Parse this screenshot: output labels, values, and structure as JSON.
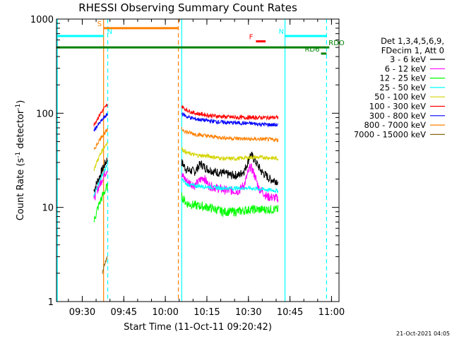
{
  "chart_data": {
    "type": "line",
    "title": "RHESSI Observing Summary Count Rates",
    "xlabel": "Start Time (11-Oct-11 09:20:42)",
    "ylabel_main": "Count Rate (s",
    "ylabel_sup1": "-1",
    "ylabel_mid": " detector",
    "ylabel_sup2": "-1",
    "ylabel_end": ")",
    "x_unit": "minutes after 09:20:42",
    "xlim": [
      0,
      102
    ],
    "ylim": [
      1,
      1000
    ],
    "yscale": "log",
    "x_ticks": [
      {
        "value": 9.3,
        "label": "09:30"
      },
      {
        "value": 24.3,
        "label": "09:45"
      },
      {
        "value": 39.3,
        "label": "10:00"
      },
      {
        "value": 54.3,
        "label": "10:15"
      },
      {
        "value": 69.3,
        "label": "10:30"
      },
      {
        "value": 84.3,
        "label": "10:45"
      },
      {
        "value": 99.3,
        "label": "11:00"
      }
    ],
    "y_ticks": [
      {
        "value": 1,
        "label": "1"
      },
      {
        "value": 10,
        "label": "10"
      },
      {
        "value": 100,
        "label": "100"
      },
      {
        "value": 1000,
        "label": "1000"
      }
    ],
    "legend_header": [
      "Det 1,3,4,5,6,9,",
      "FDecim 1, Att 0"
    ],
    "legend_position": "right",
    "series": [
      {
        "name": "3 - 6 keV",
        "color": "#000000",
        "seg1": [
          [
            13.5,
            15
          ],
          [
            14.5,
            18
          ],
          [
            15.5,
            21
          ],
          [
            16.5,
            25
          ],
          [
            17.5,
            29
          ],
          [
            18.5,
            33
          ]
        ],
        "seg2": [
          [
            45.2,
            30
          ],
          [
            47,
            25
          ],
          [
            50,
            24
          ],
          [
            52,
            29
          ],
          [
            54,
            26
          ],
          [
            57,
            24
          ],
          [
            60,
            23
          ],
          [
            63,
            22
          ],
          [
            66,
            22
          ],
          [
            68,
            25
          ],
          [
            69,
            30
          ],
          [
            70,
            36
          ],
          [
            71,
            34
          ],
          [
            72,
            30
          ],
          [
            74,
            24
          ],
          [
            77,
            20
          ],
          [
            80,
            19
          ]
        ]
      },
      {
        "name": "6 - 12 keV",
        "color": "#ff00ff",
        "seg1": [
          [
            13.5,
            12
          ],
          [
            14.5,
            15
          ],
          [
            15.5,
            17
          ],
          [
            16.5,
            20
          ],
          [
            17.5,
            23
          ],
          [
            18.5,
            26
          ]
        ],
        "seg2": [
          [
            45.2,
            22
          ],
          [
            47,
            19
          ],
          [
            50,
            17
          ],
          [
            53,
            21
          ],
          [
            55,
            17
          ],
          [
            58,
            16
          ],
          [
            62,
            15
          ],
          [
            66,
            15
          ],
          [
            68,
            18
          ],
          [
            70,
            27
          ],
          [
            71,
            24
          ],
          [
            73,
            16
          ],
          [
            76,
            13
          ],
          [
            80,
            12.5
          ]
        ]
      },
      {
        "name": "12 - 25 keV",
        "color": "#00ff00",
        "seg1": [
          [
            13.5,
            7
          ],
          [
            14.5,
            9
          ],
          [
            15.5,
            11
          ],
          [
            16.5,
            13
          ],
          [
            17.5,
            15
          ],
          [
            18.5,
            17
          ]
        ],
        "seg2": [
          [
            45.2,
            13
          ],
          [
            47,
            11
          ],
          [
            50,
            10.5
          ],
          [
            55,
            10
          ],
          [
            60,
            9
          ],
          [
            65,
            9
          ],
          [
            70,
            9.5
          ],
          [
            75,
            9.5
          ],
          [
            80,
            9.5
          ]
        ]
      },
      {
        "name": "25 - 50 keV",
        "color": "#00ffff",
        "seg1": [
          [
            13.5,
            13
          ],
          [
            14.5,
            16
          ],
          [
            15.5,
            19
          ],
          [
            16.5,
            22
          ],
          [
            17.5,
            25
          ],
          [
            18.5,
            28
          ]
        ],
        "seg2": [
          [
            45.2,
            20
          ],
          [
            47,
            17.5
          ],
          [
            50,
            17
          ],
          [
            55,
            16.5
          ],
          [
            60,
            16
          ],
          [
            65,
            16
          ],
          [
            70,
            16
          ],
          [
            75,
            15.5
          ],
          [
            80,
            15
          ]
        ]
      },
      {
        "name": "50 - 100 keV",
        "color": "#d4d400",
        "seg1": [
          [
            13.5,
            25
          ],
          [
            14.5,
            30
          ],
          [
            15.5,
            35
          ],
          [
            16.5,
            40
          ],
          [
            17.5,
            45
          ],
          [
            18.5,
            50
          ]
        ],
        "seg2": [
          [
            45.2,
            42
          ],
          [
            47,
            38
          ],
          [
            50,
            36
          ],
          [
            55,
            35
          ],
          [
            60,
            33
          ],
          [
            65,
            33
          ],
          [
            70,
            34
          ],
          [
            75,
            34
          ],
          [
            80,
            33
          ]
        ]
      },
      {
        "name": "100 - 300 keV",
        "color": "#ff0000",
        "seg1": [
          [
            13.5,
            75
          ],
          [
            14.5,
            85
          ],
          [
            15.5,
            95
          ],
          [
            16.5,
            105
          ],
          [
            17.5,
            115
          ],
          [
            18.5,
            125
          ]
        ],
        "seg2": [
          [
            45.2,
            118
          ],
          [
            47,
            108
          ],
          [
            50,
            100
          ],
          [
            55,
            95
          ],
          [
            60,
            92
          ],
          [
            65,
            90
          ],
          [
            70,
            90
          ],
          [
            75,
            90
          ],
          [
            80,
            90
          ]
        ]
      },
      {
        "name": "300 - 800 keV",
        "color": "#0000ff",
        "seg1": [
          [
            13.5,
            65
          ],
          [
            14.5,
            72
          ],
          [
            15.5,
            78
          ],
          [
            16.5,
            85
          ],
          [
            17.5,
            92
          ],
          [
            18.5,
            98
          ]
        ],
        "seg2": [
          [
            45.2,
            100
          ],
          [
            47,
            92
          ],
          [
            50,
            87
          ],
          [
            55,
            83
          ],
          [
            60,
            80
          ],
          [
            65,
            79
          ],
          [
            70,
            78
          ],
          [
            75,
            76
          ],
          [
            80,
            75
          ]
        ]
      },
      {
        "name": "800 - 7000 keV",
        "color": "#ff8000",
        "seg1": [
          [
            13.5,
            40
          ],
          [
            14.5,
            46
          ],
          [
            15.5,
            52
          ],
          [
            16.5,
            58
          ],
          [
            17.5,
            62
          ],
          [
            18.5,
            66
          ]
        ],
        "seg2": [
          [
            45.2,
            68
          ],
          [
            47,
            63
          ],
          [
            50,
            60
          ],
          [
            55,
            57
          ],
          [
            60,
            55
          ],
          [
            65,
            54
          ],
          [
            70,
            53
          ],
          [
            75,
            53
          ],
          [
            80,
            52
          ]
        ]
      },
      {
        "name": "7000 - 15000 keV",
        "color": "#8b6914",
        "seg1": [
          [
            16.5,
            2
          ],
          [
            17.5,
            2.6
          ],
          [
            18.5,
            3
          ]
        ],
        "seg2": []
      }
    ],
    "state_bars": [
      {
        "label": "S",
        "color": "#ff8000",
        "y": 800,
        "x_start": 17,
        "x_end": 44
      },
      {
        "label": "N",
        "color": "#00ffff",
        "y": 660,
        "x_start": 0,
        "x_end": 17
      },
      {
        "label": "N",
        "color": "#00ffff",
        "y": 660,
        "x_start": 82.5,
        "x_end": 97.5
      },
      {
        "label": "F",
        "color": "#ff0000",
        "y": 580,
        "x_start": 72,
        "x_end": 75.5
      },
      {
        "label": "",
        "color": "#008000",
        "y": 500,
        "x_start": 0,
        "x_end": 97.5
      },
      {
        "label": "RDO",
        "color": "#008000",
        "y": 500,
        "x_start": 97.5,
        "x_end": 98.5
      },
      {
        "label": "RD6",
        "color": "#008000",
        "y": 430,
        "x_start": 95.5,
        "x_end": 97.5
      }
    ],
    "vertical_markers": [
      {
        "x": 0.3,
        "color": "#00ffff",
        "style": "solid"
      },
      {
        "x": 17,
        "color": "#ff8000",
        "style": "solid"
      },
      {
        "x": 18.5,
        "color": "#00ffff",
        "style": "dashed"
      },
      {
        "x": 44,
        "color": "#ff8000",
        "style": "dashed"
      },
      {
        "x": 45.2,
        "color": "#00ffff",
        "style": "solid"
      },
      {
        "x": 82.5,
        "color": "#00ffff",
        "style": "solid"
      },
      {
        "x": 97.5,
        "color": "#00ffff",
        "style": "dashed"
      }
    ]
  },
  "footer": {
    "timestamp": "21-Oct-2021 04:05"
  }
}
